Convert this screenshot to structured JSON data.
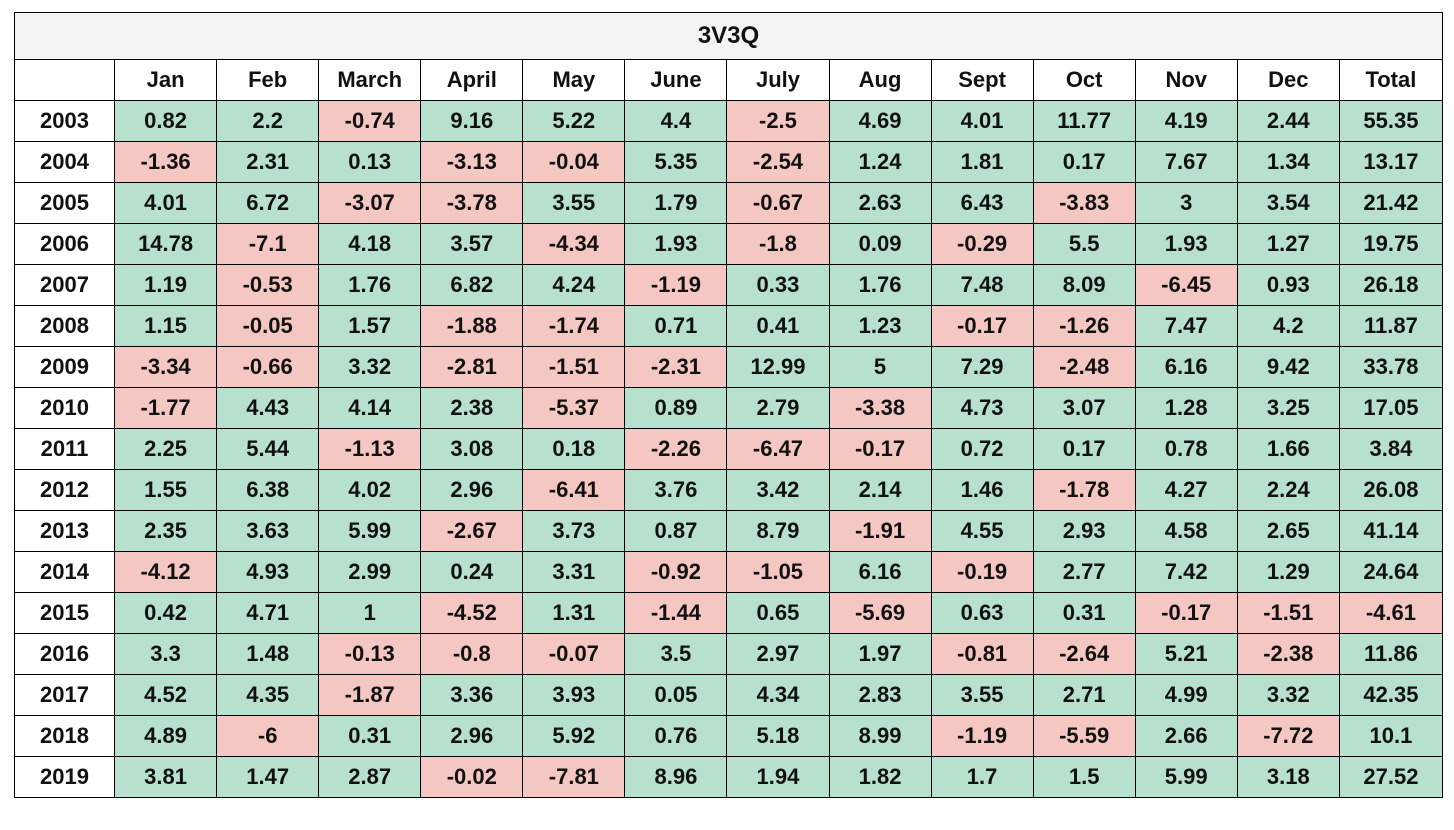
{
  "title": "3V3Q",
  "columns": [
    "",
    "Jan",
    "Feb",
    "March",
    "April",
    "May",
    "June",
    "July",
    "Aug",
    "Sept",
    "Oct",
    "Nov",
    "Dec",
    "Total"
  ],
  "colors": {
    "positive": "#b7e1cd",
    "negative": "#f4c7c3",
    "title_background": "#f3f3f3"
  },
  "rows": [
    {
      "year": "2003",
      "values": [
        "0.82",
        "2.2",
        "-0.74",
        "9.16",
        "5.22",
        "4.4",
        "-2.5",
        "4.69",
        "4.01",
        "11.77",
        "4.19",
        "2.44",
        "55.35"
      ]
    },
    {
      "year": "2004",
      "values": [
        "-1.36",
        "2.31",
        "0.13",
        "-3.13",
        "-0.04",
        "5.35",
        "-2.54",
        "1.24",
        "1.81",
        "0.17",
        "7.67",
        "1.34",
        "13.17"
      ]
    },
    {
      "year": "2005",
      "values": [
        "4.01",
        "6.72",
        "-3.07",
        "-3.78",
        "3.55",
        "1.79",
        "-0.67",
        "2.63",
        "6.43",
        "-3.83",
        "3",
        "3.54",
        "21.42"
      ]
    },
    {
      "year": "2006",
      "values": [
        "14.78",
        "-7.1",
        "4.18",
        "3.57",
        "-4.34",
        "1.93",
        "-1.8",
        "0.09",
        "-0.29",
        "5.5",
        "1.93",
        "1.27",
        "19.75"
      ]
    },
    {
      "year": "2007",
      "values": [
        "1.19",
        "-0.53",
        "1.76",
        "6.82",
        "4.24",
        "-1.19",
        "0.33",
        "1.76",
        "7.48",
        "8.09",
        "-6.45",
        "0.93",
        "26.18"
      ]
    },
    {
      "year": "2008",
      "values": [
        "1.15",
        "-0.05",
        "1.57",
        "-1.88",
        "-1.74",
        "0.71",
        "0.41",
        "1.23",
        "-0.17",
        "-1.26",
        "7.47",
        "4.2",
        "11.87"
      ]
    },
    {
      "year": "2009",
      "values": [
        "-3.34",
        "-0.66",
        "3.32",
        "-2.81",
        "-1.51",
        "-2.31",
        "12.99",
        "5",
        "7.29",
        "-2.48",
        "6.16",
        "9.42",
        "33.78"
      ]
    },
    {
      "year": "2010",
      "values": [
        "-1.77",
        "4.43",
        "4.14",
        "2.38",
        "-5.37",
        "0.89",
        "2.79",
        "-3.38",
        "4.73",
        "3.07",
        "1.28",
        "3.25",
        "17.05"
      ]
    },
    {
      "year": "2011",
      "values": [
        "2.25",
        "5.44",
        "-1.13",
        "3.08",
        "0.18",
        "-2.26",
        "-6.47",
        "-0.17",
        "0.72",
        "0.17",
        "0.78",
        "1.66",
        "3.84"
      ]
    },
    {
      "year": "2012",
      "values": [
        "1.55",
        "6.38",
        "4.02",
        "2.96",
        "-6.41",
        "3.76",
        "3.42",
        "2.14",
        "1.46",
        "-1.78",
        "4.27",
        "2.24",
        "26.08"
      ]
    },
    {
      "year": "2013",
      "values": [
        "2.35",
        "3.63",
        "5.99",
        "-2.67",
        "3.73",
        "0.87",
        "8.79",
        "-1.91",
        "4.55",
        "2.93",
        "4.58",
        "2.65",
        "41.14"
      ]
    },
    {
      "year": "2014",
      "values": [
        "-4.12",
        "4.93",
        "2.99",
        "0.24",
        "3.31",
        "-0.92",
        "-1.05",
        "6.16",
        "-0.19",
        "2.77",
        "7.42",
        "1.29",
        "24.64"
      ]
    },
    {
      "year": "2015",
      "values": [
        "0.42",
        "4.71",
        "1",
        "-4.52",
        "1.31",
        "-1.44",
        "0.65",
        "-5.69",
        "0.63",
        "0.31",
        "-0.17",
        "-1.51",
        "-4.61"
      ]
    },
    {
      "year": "2016",
      "values": [
        "3.3",
        "1.48",
        "-0.13",
        "-0.8",
        "-0.07",
        "3.5",
        "2.97",
        "1.97",
        "-0.81",
        "-2.64",
        "5.21",
        "-2.38",
        "11.86"
      ]
    },
    {
      "year": "2017",
      "values": [
        "4.52",
        "4.35",
        "-1.87",
        "3.36",
        "3.93",
        "0.05",
        "4.34",
        "2.83",
        "3.55",
        "2.71",
        "4.99",
        "3.32",
        "42.35"
      ]
    },
    {
      "year": "2018",
      "values": [
        "4.89",
        "-6",
        "0.31",
        "2.96",
        "5.92",
        "0.76",
        "5.18",
        "8.99",
        "-1.19",
        "-5.59",
        "2.66",
        "-7.72",
        "10.1"
      ]
    },
    {
      "year": "2019",
      "values": [
        "3.81",
        "1.47",
        "2.87",
        "-0.02",
        "-7.81",
        "8.96",
        "1.94",
        "1.82",
        "1.7",
        "1.5",
        "5.99",
        "3.18",
        "27.52"
      ]
    }
  ]
}
